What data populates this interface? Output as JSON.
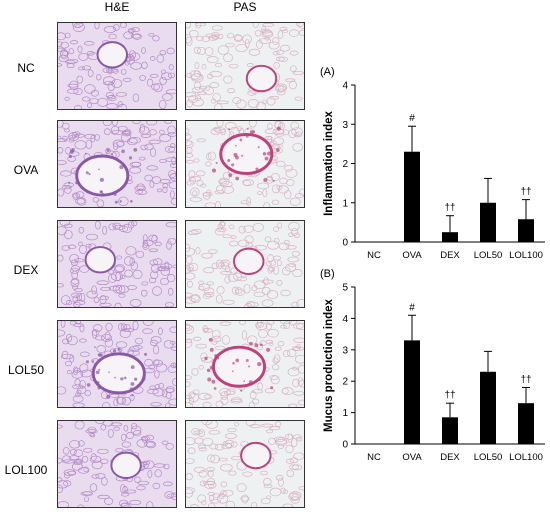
{
  "figure": {
    "column_headers": [
      "H&E",
      "PAS"
    ],
    "row_labels": [
      "NC",
      "OVA",
      "DEX",
      "LOL50",
      "LOL100"
    ]
  },
  "micrographs": {
    "he_colors": {
      "background": "#e9dcef",
      "tissue": "#b58ac7",
      "dense": "#8a57a9"
    },
    "pas_colors": {
      "background": "#eef1f2",
      "tissue": "#d7b3c4",
      "dense": "#c0407a"
    }
  },
  "chart_data": [
    {
      "type": "bar",
      "panel_label": "(A)",
      "ylabel": "Inflammation index",
      "categories": [
        "NC",
        "OVA",
        "DEX",
        "LOL50",
        "LOL100"
      ],
      "values": [
        0,
        2.3,
        0.25,
        1.0,
        0.58
      ],
      "errors": [
        0,
        0.65,
        0.42,
        0.62,
        0.5
      ],
      "annotations": [
        "",
        "#",
        "††",
        "",
        "††"
      ],
      "ylim": [
        0,
        4
      ],
      "yticks": [
        0,
        1,
        2,
        3,
        4
      ],
      "bar_color": "#000000"
    },
    {
      "type": "bar",
      "panel_label": "(B)",
      "ylabel": "Mucus production index",
      "categories": [
        "NC",
        "OVA",
        "DEX",
        "LOL50",
        "LOL100"
      ],
      "values": [
        0,
        3.3,
        0.85,
        2.3,
        1.3
      ],
      "errors": [
        0,
        0.8,
        0.45,
        0.65,
        0.5
      ],
      "annotations": [
        "",
        "#",
        "††",
        "",
        "††"
      ],
      "ylim": [
        0,
        5
      ],
      "yticks": [
        0,
        1,
        2,
        3,
        4,
        5
      ],
      "bar_color": "#000000"
    }
  ]
}
